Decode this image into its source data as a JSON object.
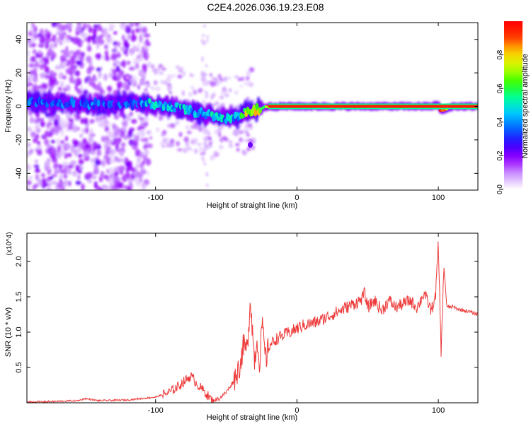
{
  "title": "C2E4.2026.036.19.23.E08",
  "chart_data": [
    {
      "type": "heatmap",
      "xlabel": "Height of straight line (km)",
      "ylabel": "Frequency (Hz)",
      "xlim": [
        -191,
        128
      ],
      "ylim": [
        -50,
        50
      ],
      "x_ticks": [
        -100,
        0,
        100
      ],
      "y_ticks": [
        -40,
        -20,
        0,
        20,
        40
      ],
      "colorbar": {
        "label": "Normalized spectral amplitude",
        "range": [
          0,
          1
        ],
        "ticks": [
          0.0,
          0.2,
          0.4,
          0.6,
          0.8
        ],
        "colors": [
          "#ffffff",
          "#cc99ff",
          "#9900ff",
          "#3300ff",
          "#0066ff",
          "#00ccff",
          "#00ff99",
          "#33ff00",
          "#ccff00",
          "#ffcc00",
          "#ff3300",
          "#ff0000"
        ]
      },
      "ridge": {
        "x": [
          -190,
          -170,
          -150,
          -130,
          -120,
          -110,
          -100,
          -90,
          -80,
          -70,
          -60,
          -50,
          -40,
          -35,
          -30,
          -25,
          -20,
          -10,
          0,
          10,
          20,
          40,
          60,
          80,
          95,
          100,
          102,
          110,
          128
        ],
        "y": [
          3,
          2,
          1,
          1,
          2,
          2,
          1,
          0,
          -2,
          -4,
          -6,
          -7,
          -6,
          -3,
          -2,
          -1,
          0,
          0,
          0,
          0,
          0,
          0,
          0,
          0,
          0,
          1,
          -3,
          0,
          0
        ]
      },
      "isolated_blob": {
        "x": -33,
        "y": -23
      }
    },
    {
      "type": "line",
      "xlabel": "Height of straight line (km)",
      "ylabel": "SNR (10 * v/v)",
      "y_multiplier": "(x10^4)",
      "xlim": [
        -191,
        128
      ],
      "ylim": [
        0,
        2.4
      ],
      "x_ticks": [
        -100,
        0,
        100
      ],
      "y_ticks": [
        0.5,
        1.0,
        1.5,
        2.0
      ],
      "color": "#ee3b3b",
      "series": [
        {
          "name": "SNR",
          "x": [
            -191,
            -170,
            -155,
            -150,
            -140,
            -120,
            -100,
            -90,
            -85,
            -80,
            -75,
            -70,
            -65,
            -60,
            -55,
            -50,
            -45,
            -40,
            -38,
            -35,
            -33,
            -30,
            -28,
            -26,
            -25,
            -22,
            -20,
            -15,
            -10,
            -5,
            0,
            5,
            10,
            15,
            20,
            25,
            30,
            35,
            40,
            45,
            48,
            50,
            55,
            60,
            65,
            70,
            75,
            80,
            85,
            90,
            95,
            98,
            100,
            102,
            104,
            106,
            110,
            115,
            120,
            128
          ],
          "values": [
            0.01,
            0.02,
            0.03,
            0.06,
            0.03,
            0.04,
            0.08,
            0.15,
            0.22,
            0.3,
            0.38,
            0.25,
            0.15,
            0.03,
            0.06,
            0.15,
            0.3,
            0.55,
            0.8,
            0.75,
            1.5,
            0.6,
            0.9,
            0.5,
            1.15,
            0.6,
            0.8,
            0.9,
            0.95,
            1.0,
            1.05,
            1.1,
            1.12,
            1.15,
            1.2,
            1.25,
            1.3,
            1.35,
            1.4,
            1.45,
            1.55,
            1.35,
            1.45,
            1.3,
            1.45,
            1.35,
            1.4,
            1.45,
            1.35,
            1.55,
            1.3,
            1.5,
            2.25,
            0.7,
            1.95,
            1.35,
            1.36,
            1.32,
            1.3,
            1.25
          ]
        }
      ]
    }
  ]
}
